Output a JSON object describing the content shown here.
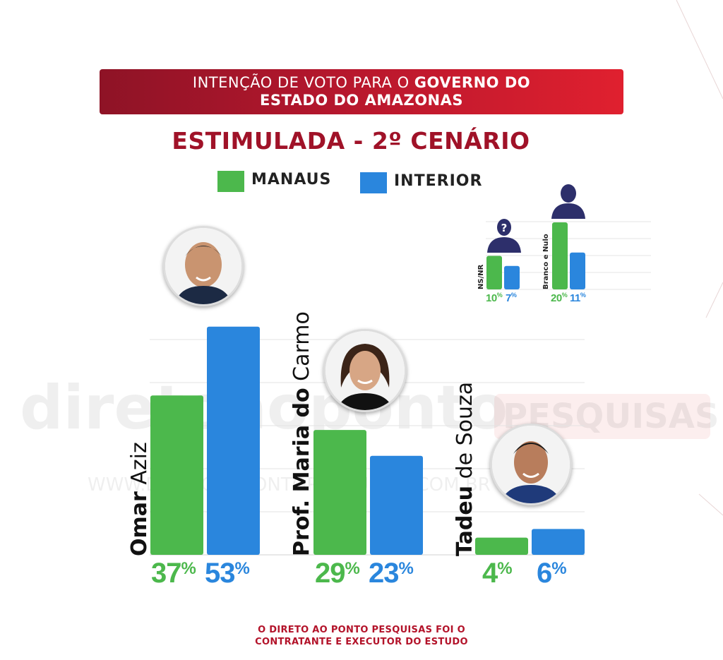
{
  "header": {
    "line1_regular": "INTENÇÃO DE VOTO PARA O ",
    "line1_bold": "GOVERNO DO",
    "line2_bold": "ESTADO DO AMAZONAS"
  },
  "subtitle": "ESTIMULADA - 2º CENÁRIO",
  "legend": [
    {
      "label": "MANAUS",
      "color": "#4cb84c"
    },
    {
      "label": "INTERIOR",
      "color": "#2a86dd"
    }
  ],
  "chart_data": {
    "type": "bar",
    "categories": [
      "Omar Aziz",
      "Prof. Maria do Carmo",
      "Tadeu de Souza",
      "NS/NR",
      "Branco e Nulo"
    ],
    "series": [
      {
        "name": "MANAUS",
        "values": [
          37,
          29,
          4,
          10,
          20
        ]
      },
      {
        "name": "INTERIOR",
        "values": [
          53,
          23,
          6,
          7,
          11
        ]
      }
    ],
    "ylim": [
      0,
      55
    ],
    "grid": true
  },
  "candidates": [
    {
      "first": "Omar",
      "last": " Aziz",
      "manaus_label": "37%",
      "interior_label": "53%"
    },
    {
      "first": "Prof. Maria do",
      "last": " Carmo",
      "manaus_label": "29%",
      "interior_label": "23%"
    },
    {
      "first": "Tadeu",
      "last": " de Souza",
      "manaus_label": "4%",
      "interior_label": "6%"
    }
  ],
  "others": [
    {
      "label": "NS/NR",
      "manaus_label": "10%",
      "interior_label": "7%"
    },
    {
      "label": "Branco e Nulo",
      "manaus_label": "20%",
      "interior_label": "11%"
    }
  ],
  "watermark": {
    "brand_left": "direto",
    "brand_mid": "ao",
    "brand_right": "ponto",
    "brand_tag": "PESQUISAS",
    "url_prefix": "WWW.",
    "url_mid": "DIRETOAOPONTOPESQUISAS",
    "url_suffix": ".COM.BR"
  },
  "footer": {
    "line1": "O DIRETO AO PONTO PESQUISAS FOI O",
    "line2": "CONTRATANTE E EXECUTOR DO ESTUDO"
  },
  "colors": {
    "manaus": "#4cb84c",
    "interior": "#2a86dd",
    "accent": "#b3132a"
  },
  "icons": {
    "avatar_undecided": "person-question-icon",
    "avatar_blank": "person-icon"
  }
}
